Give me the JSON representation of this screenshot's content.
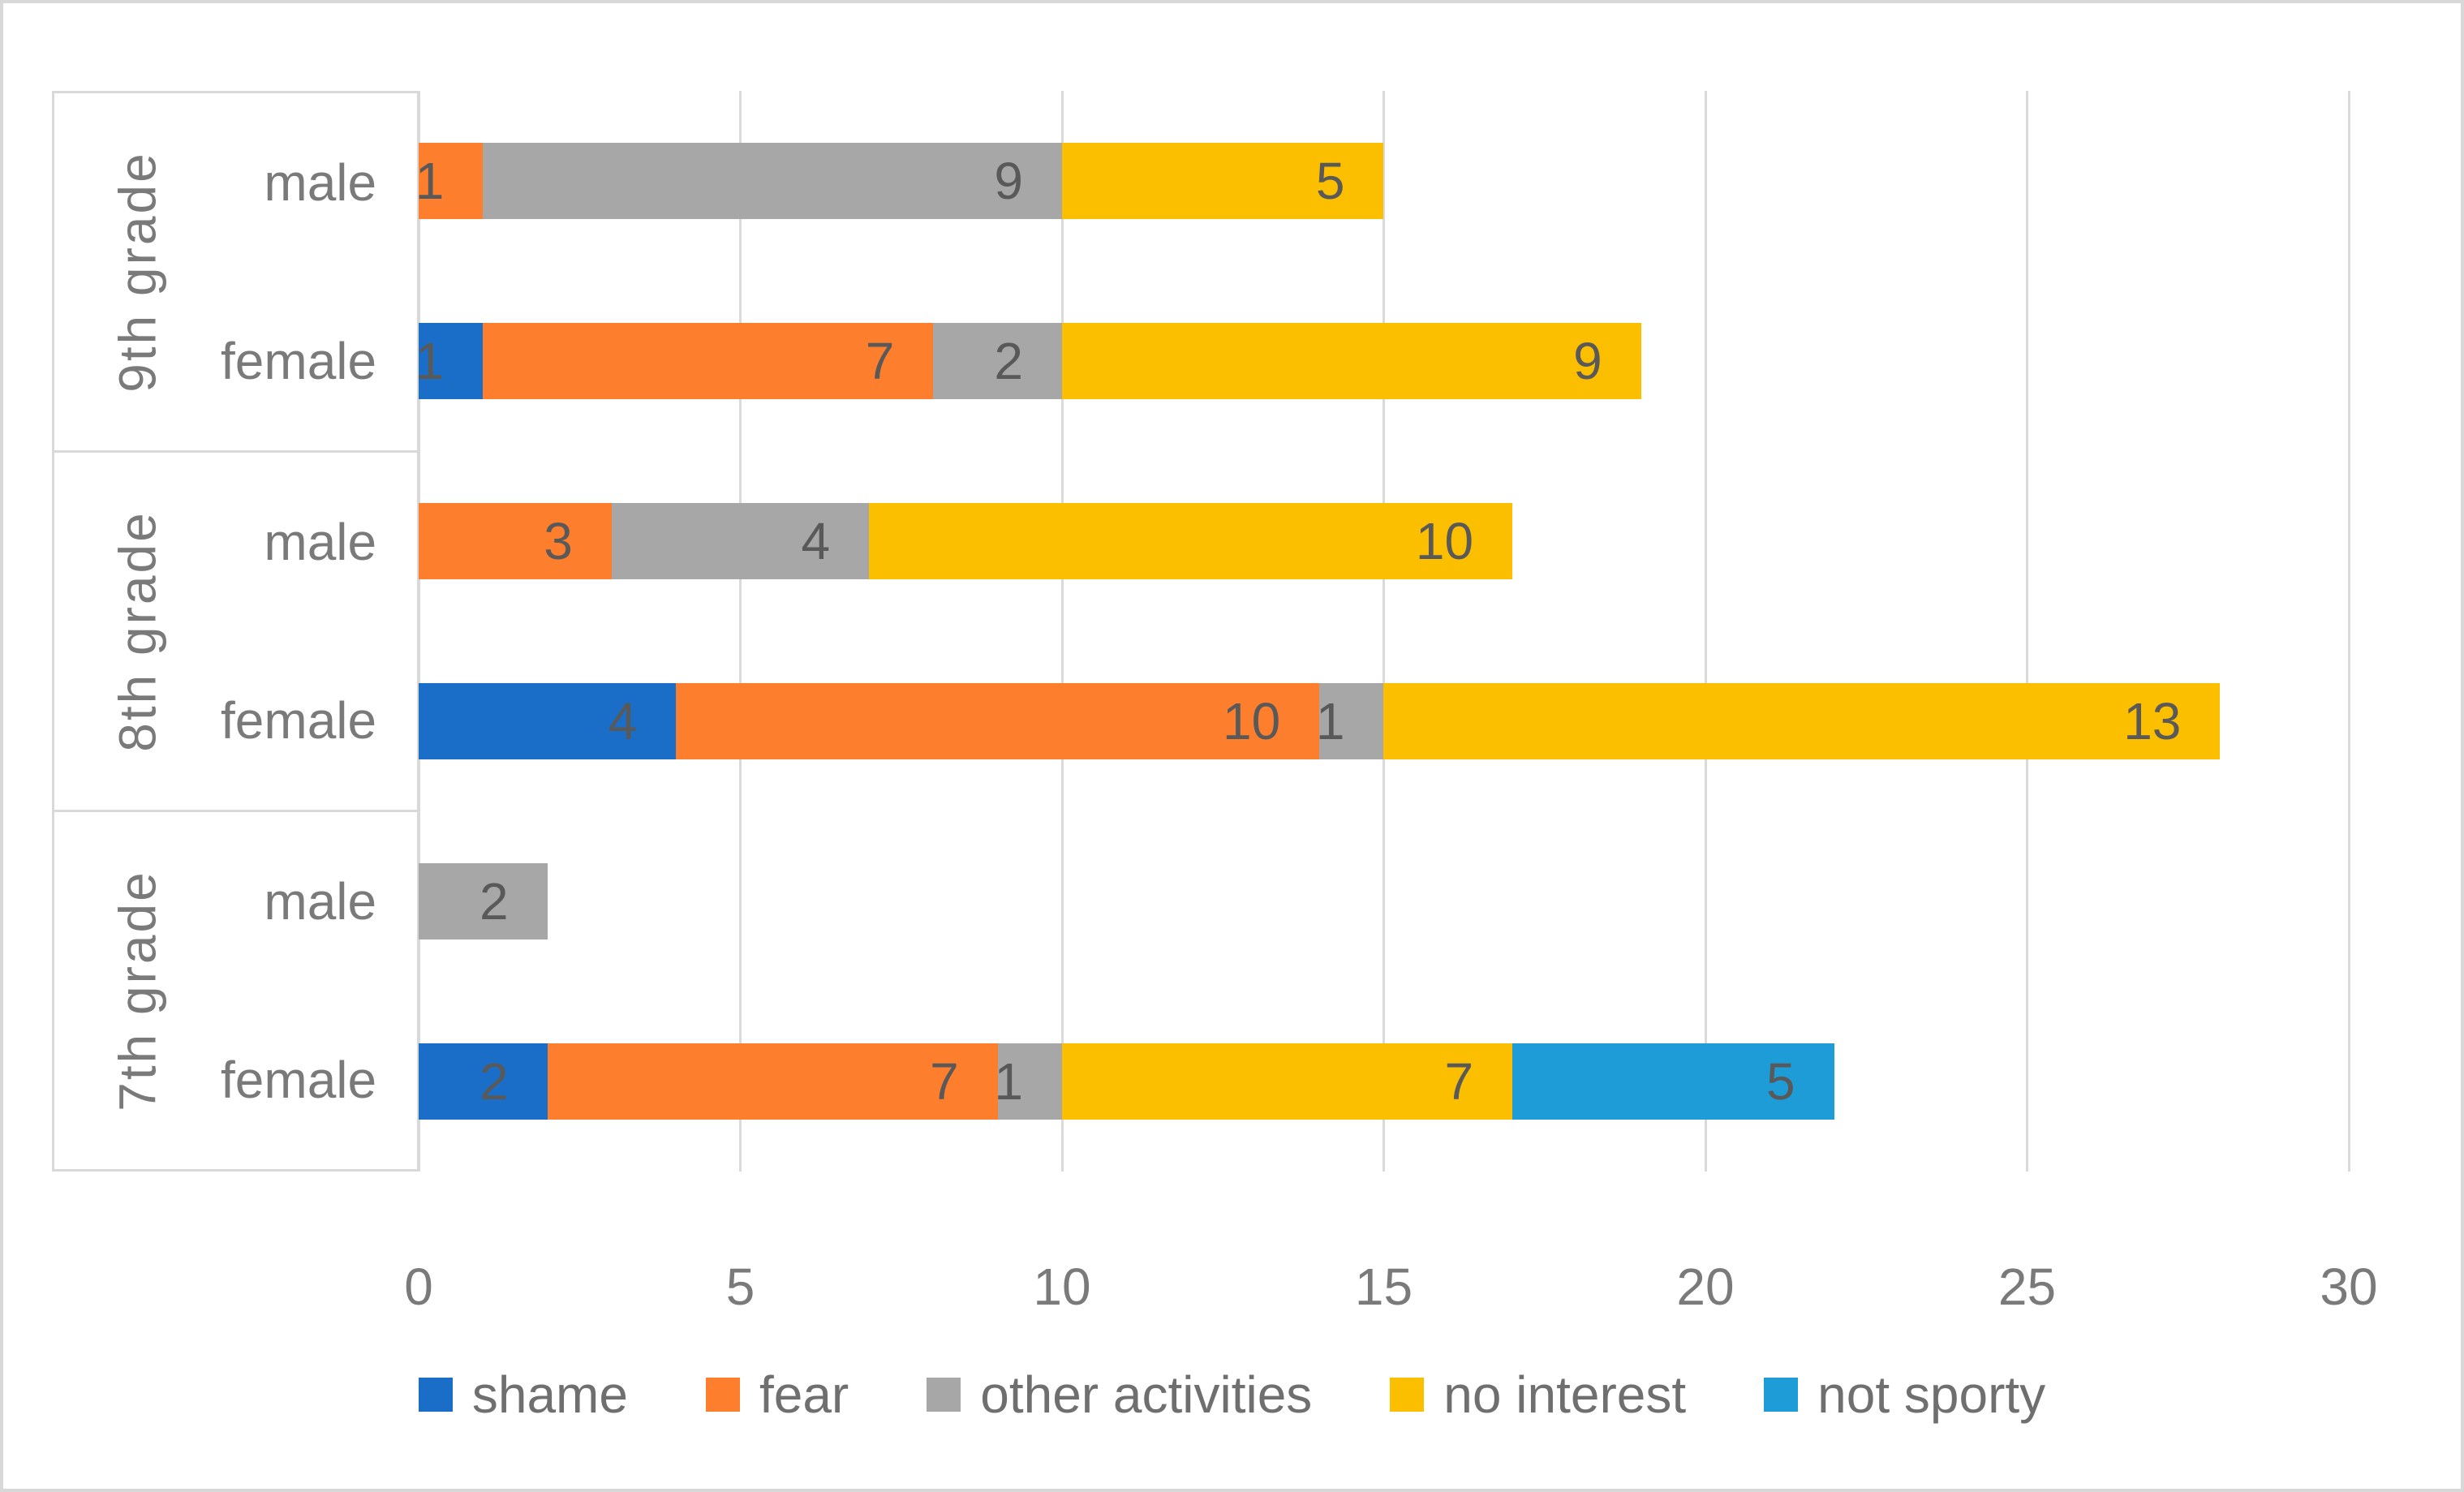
{
  "chart_data": {
    "type": "bar",
    "orientation": "horizontal",
    "stacked": true,
    "title": "",
    "xlabel": "",
    "ylabel": "",
    "x_axis": {
      "min": 0,
      "max": 30,
      "ticks": [
        0,
        5,
        10,
        15,
        20,
        25,
        30
      ],
      "grid": true
    },
    "rows": [
      {
        "group": "9th grade",
        "gender": "male"
      },
      {
        "group": "9th grade",
        "gender": "female"
      },
      {
        "group": "8th grade",
        "gender": "male"
      },
      {
        "group": "8th grade",
        "gender": "female"
      },
      {
        "group": "7th grade",
        "gender": "male"
      },
      {
        "group": "7th grade",
        "gender": "female"
      }
    ],
    "series": [
      {
        "name": "shame",
        "color": "#1b6ec7",
        "values": [
          0,
          1,
          0,
          4,
          0,
          2
        ]
      },
      {
        "name": "fear",
        "color": "#fd7e2c",
        "values": [
          1,
          7,
          3,
          10,
          0,
          7
        ]
      },
      {
        "name": "other activities",
        "color": "#a7a7a7",
        "values": [
          9,
          2,
          4,
          1,
          2,
          1
        ]
      },
      {
        "name": "no interest",
        "color": "#fbbf00",
        "values": [
          5,
          9,
          10,
          13,
          0,
          7
        ]
      },
      {
        "name": "not sporty",
        "color": "#1e9cd8",
        "values": [
          0,
          0,
          0,
          0,
          0,
          5
        ]
      }
    ],
    "row_totals": [
      15,
      19,
      17,
      28,
      2,
      22
    ],
    "legend_position": "bottom",
    "data_labels": "inside-end"
  },
  "style": {
    "grid_color": "#dadada",
    "panel_border_color": "#d9d9d9",
    "frame_border_color": "#d8d8d8",
    "data_label_color": "#595959",
    "axis_text_color": "#7a7a7a",
    "legend_text_color": "#6f6f6f",
    "background": "#ffffff"
  }
}
